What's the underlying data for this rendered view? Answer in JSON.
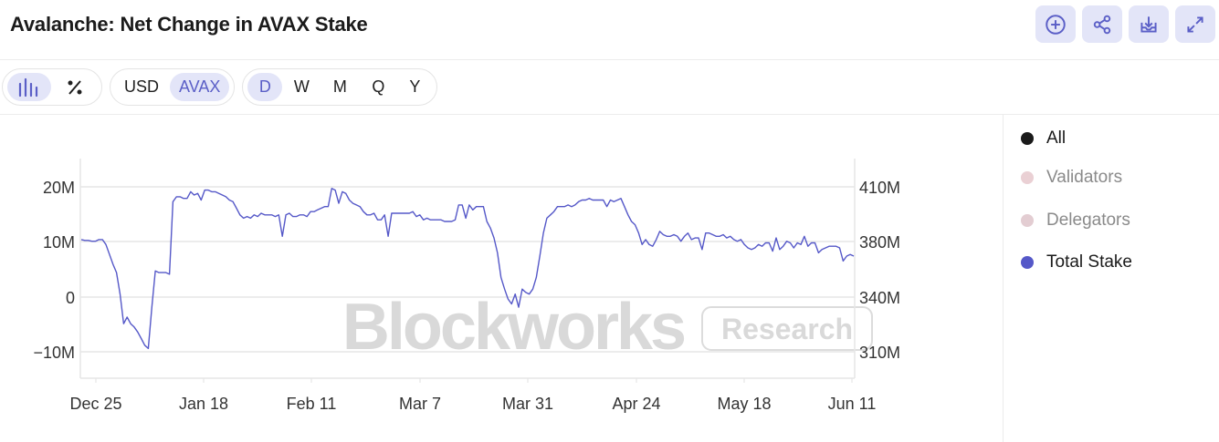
{
  "header": {
    "title": "Avalanche: Net Change in AVAX Stake",
    "actions": [
      {
        "icon": "add-circle-icon"
      },
      {
        "icon": "share-icon"
      },
      {
        "icon": "download-icon"
      },
      {
        "icon": "expand-icon"
      }
    ]
  },
  "toolbar": {
    "chart_toggle": [
      {
        "icon": "bar-chart-icon",
        "active": true
      },
      {
        "icon": "percent-icon",
        "active": false
      }
    ],
    "currency": [
      {
        "label": "USD",
        "active": false
      },
      {
        "label": "AVAX",
        "active": true
      }
    ],
    "timeframe": [
      {
        "label": "D",
        "active": true
      },
      {
        "label": "W",
        "active": false
      },
      {
        "label": "M",
        "active": false
      },
      {
        "label": "Q",
        "active": false
      },
      {
        "label": "Y",
        "active": false
      }
    ]
  },
  "watermark": {
    "brand": "Blockworks",
    "tag": "Research"
  },
  "legend": [
    {
      "label": "All",
      "color": "#1a1a1a",
      "text_color": "#1a1a1a"
    },
    {
      "label": "Validators",
      "color": "#ead0d4",
      "text_color": "#8a8a8a"
    },
    {
      "label": "Delegators",
      "color": "#e3cdd2",
      "text_color": "#8a8a8a"
    },
    {
      "label": "Total Stake",
      "color": "#5558c8",
      "text_color": "#1a1a1a"
    }
  ],
  "chart_data": {
    "type": "line",
    "title": "Avalanche: Net Change in AVAX Stake",
    "xlabel": "",
    "ylabel": "",
    "x_ticks": [
      "Dec 25",
      "Jan 18",
      "Feb 11",
      "Mar 7",
      "Mar 31",
      "Apr 24",
      "May 18",
      "Jun 11"
    ],
    "y_left_ticks": [
      "20M",
      "10M",
      "0",
      "−10M"
    ],
    "y_right_ticks": [
      "410M",
      "380M",
      "340M",
      "310M"
    ],
    "y_right_range": [
      300,
      420
    ],
    "grid": true,
    "legend_position": "right",
    "series": [
      {
        "name": "Total Stake",
        "color": "#5558c8",
        "axis": "right",
        "values": [
          378,
          377.5,
          377.5,
          377,
          377,
          378,
          378,
          375,
          369,
          363,
          358,
          345,
          327,
          331,
          327,
          325,
          322,
          318,
          314,
          312,
          337,
          359,
          358,
          358,
          358,
          357,
          401,
          404,
          404,
          403,
          403,
          407,
          405,
          406,
          402,
          408,
          408,
          407,
          407,
          406,
          405,
          404,
          402,
          401,
          397,
          393,
          391,
          392,
          391,
          393,
          392,
          394,
          393,
          393,
          393,
          392,
          393,
          380,
          393,
          394,
          392,
          392,
          393,
          393,
          392,
          395,
          395,
          396,
          397,
          398,
          398,
          409,
          408,
          400,
          407,
          406,
          402,
          400,
          399,
          398,
          395,
          393,
          393,
          394,
          390,
          390,
          393,
          380,
          394,
          394,
          394,
          394,
          394,
          394,
          395,
          392,
          393,
          390,
          391,
          390,
          390,
          390,
          390,
          389,
          389,
          389,
          390,
          399,
          399,
          391,
          399,
          396,
          398,
          398,
          398,
          389,
          385,
          379,
          370,
          355,
          348,
          342,
          339,
          345,
          337,
          348,
          346,
          345,
          348,
          355,
          368,
          382,
          391,
          393,
          395,
          398,
          398,
          398,
          399,
          398,
          399,
          401,
          402,
          402,
          403,
          402,
          402,
          402,
          402,
          398,
          402,
          401,
          402,
          403,
          398,
          393,
          389,
          387,
          382,
          375,
          378,
          375,
          374,
          378,
          383,
          381,
          380,
          380,
          381,
          380,
          377,
          380,
          382,
          378,
          379,
          379,
          372,
          382,
          382,
          381,
          380,
          380,
          381,
          379,
          380,
          378,
          377,
          378,
          375,
          373,
          372,
          373,
          375,
          374,
          376,
          376,
          371,
          379,
          372,
          374,
          377,
          376,
          373,
          376,
          375,
          380,
          374,
          376,
          376,
          370,
          372,
          373,
          374,
          374,
          374,
          373,
          365,
          368,
          369,
          368
        ]
      }
    ]
  }
}
